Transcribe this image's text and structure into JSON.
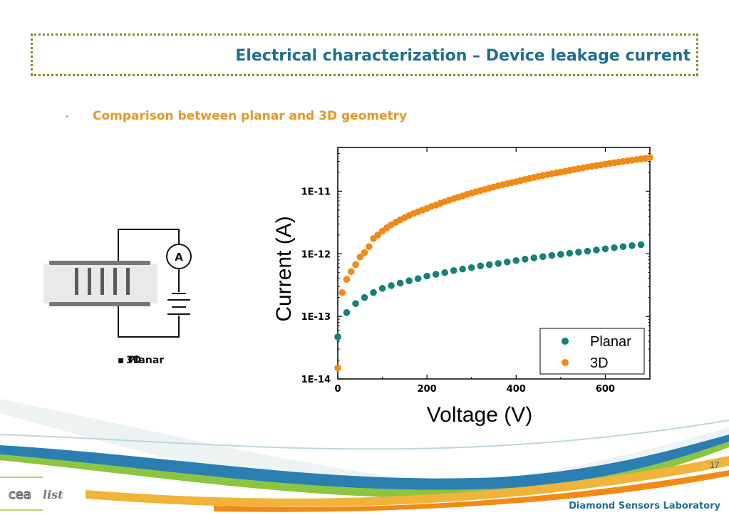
{
  "slide": {
    "title": "Electrical  characterization – Device leakage current",
    "subtitle": "Comparison between planar and 3D geometry",
    "bullet": "▪",
    "page_number": "17",
    "footer": "Diamond Sensors Laboratory",
    "logo": {
      "cea": "cea",
      "list": "list"
    }
  },
  "diagram": {
    "ammeter_label": "A",
    "caption_planar": "▪ Planar",
    "caption_3d": "3D"
  },
  "colors": {
    "title": "#1f6f8f",
    "subtitle": "#e09a2a",
    "planar": "#17807a",
    "3d": "#f28a16"
  },
  "chart_data": {
    "type": "scatter",
    "xlabel": "Voltage (V)",
    "ylabel": "Current (A)",
    "xlim": [
      0,
      700
    ],
    "ylim": [
      1e-14,
      5e-11
    ],
    "y_scale": "log",
    "x_ticks": [
      "0",
      "200",
      "400",
      "600"
    ],
    "y_ticks": [
      "1E-14",
      "1E-13",
      "1E-12",
      "1E-11"
    ],
    "legend_position": "bottom-right",
    "series": [
      {
        "name": "Planar",
        "color": "#17807a",
        "x": [
          0,
          20,
          40,
          60,
          80,
          100,
          120,
          140,
          160,
          180,
          200,
          220,
          240,
          260,
          280,
          300,
          320,
          340,
          360,
          380,
          400,
          420,
          440,
          460,
          480,
          500,
          520,
          540,
          560,
          580,
          600,
          620,
          640,
          660,
          680
        ],
        "y": [
          4.7e-14,
          1.15e-13,
          1.6e-13,
          2e-13,
          2.4e-13,
          2.8e-13,
          3.1e-13,
          3.4e-13,
          3.7e-13,
          4e-13,
          4.4e-13,
          4.7e-13,
          5e-13,
          5.4e-13,
          5.7e-13,
          6e-13,
          6.4e-13,
          6.7e-13,
          7e-13,
          7.4e-13,
          7.8e-13,
          8.2e-13,
          8.6e-13,
          9e-13,
          9.4e-13,
          9.8e-13,
          1.02e-12,
          1.06e-12,
          1.1e-12,
          1.15e-12,
          1.2e-12,
          1.25e-12,
          1.3e-12,
          1.35e-12,
          1.4e-12
        ]
      },
      {
        "name": "3D",
        "color": "#f28a16",
        "x": [
          0,
          10,
          20,
          30,
          40,
          50,
          60,
          70,
          80,
          90,
          100,
          110,
          120,
          130,
          140,
          150,
          160,
          170,
          180,
          190,
          200,
          210,
          220,
          230,
          240,
          250,
          260,
          270,
          280,
          290,
          300,
          310,
          320,
          330,
          340,
          350,
          360,
          370,
          380,
          390,
          400,
          410,
          420,
          430,
          440,
          450,
          460,
          470,
          480,
          490,
          500,
          510,
          520,
          530,
          540,
          550,
          560,
          570,
          580,
          590,
          600,
          610,
          620,
          630,
          640,
          650,
          660,
          670,
          680,
          690,
          700
        ],
        "y": [
          1.5e-14,
          2.4e-13,
          3.9e-13,
          5.2e-13,
          6.7e-13,
          8.9e-13,
          1.05e-12,
          1.3e-12,
          1.75e-12,
          2e-12,
          2.3e-12,
          2.6e-12,
          2.9e-12,
          3.2e-12,
          3.5e-12,
          3.8e-12,
          4.1e-12,
          4.4e-12,
          4.7e-12,
          5e-12,
          5.3e-12,
          5.7e-12,
          6e-12,
          6.4e-12,
          6.8e-12,
          7.2e-12,
          7.6e-12,
          8e-12,
          8.4e-12,
          8.9e-12,
          9.3e-12,
          9.8e-12,
          1.02e-11,
          1.07e-11,
          1.12e-11,
          1.17e-11,
          1.22e-11,
          1.27e-11,
          1.32e-11,
          1.37e-11,
          1.42e-11,
          1.48e-11,
          1.54e-11,
          1.6e-11,
          1.66e-11,
          1.72e-11,
          1.78e-11,
          1.84e-11,
          1.9e-11,
          1.96e-11,
          2.02e-11,
          2.08e-11,
          2.15e-11,
          2.22e-11,
          2.29e-11,
          2.36e-11,
          2.43e-11,
          2.5e-11,
          2.57e-11,
          2.64e-11,
          2.71e-11,
          2.78e-11,
          2.85e-11,
          2.92e-11,
          2.99e-11,
          3.06e-11,
          3.13e-11,
          3.2e-11,
          3.27e-11,
          3.34e-11,
          3.45e-11
        ]
      }
    ]
  }
}
